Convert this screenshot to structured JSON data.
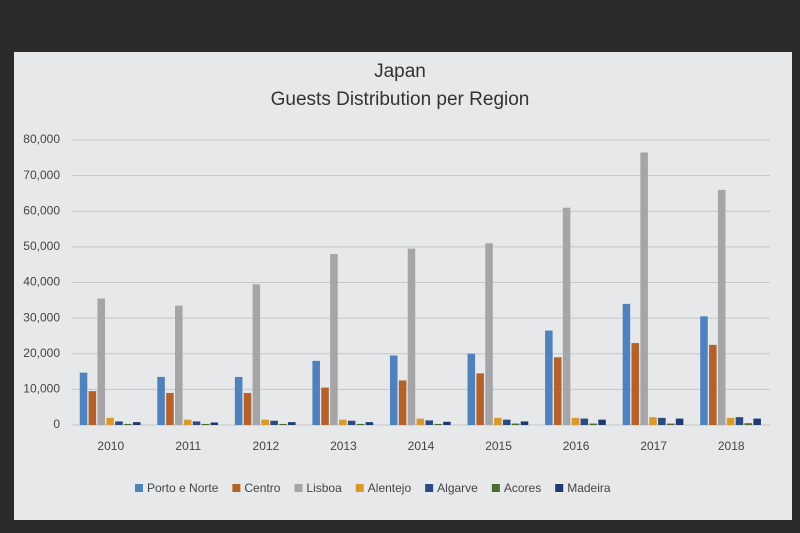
{
  "chart_data": {
    "type": "bar",
    "title": "Japan",
    "subtitle": "Guests Distribution per Region",
    "categories": [
      "2010",
      "2011",
      "2012",
      "2013",
      "2014",
      "2015",
      "2016",
      "2017",
      "2018"
    ],
    "series": [
      {
        "name": "Porto e Norte",
        "color": "#4f81bd",
        "values": [
          14700,
          13500,
          13500,
          18000,
          19500,
          20000,
          26500,
          34000,
          30500
        ]
      },
      {
        "name": "Centro",
        "color": "#b5612c",
        "values": [
          9500,
          9000,
          9000,
          10500,
          12500,
          14500,
          19000,
          23000,
          22500
        ]
      },
      {
        "name": "Lisboa",
        "color": "#a5a5a8",
        "values": [
          35500,
          33500,
          39500,
          48000,
          49500,
          51000,
          61000,
          76500,
          66000
        ]
      },
      {
        "name": "Alentejo",
        "color": "#d99a2b",
        "values": [
          2000,
          1500,
          1500,
          1500,
          1800,
          2000,
          2000,
          2200,
          2000
        ]
      },
      {
        "name": "Algarve",
        "color": "#2a4a80",
        "values": [
          1000,
          1000,
          1200,
          1200,
          1300,
          1500,
          1800,
          2000,
          2200
        ]
      },
      {
        "name": "Acores",
        "color": "#4e6b2e",
        "values": [
          300,
          300,
          300,
          300,
          300,
          400,
          400,
          400,
          500
        ]
      },
      {
        "name": "Madeira",
        "color": "#1f3a70",
        "values": [
          800,
          700,
          800,
          800,
          900,
          1000,
          1500,
          1800,
          1800
        ]
      }
    ],
    "ylim": [
      0,
      80000
    ],
    "yticks": [
      0,
      {
        "value": 10000,
        "label": "10,000"
      },
      {
        "value": 20000,
        "label": "20,000"
      },
      {
        "value": 30000,
        "label": "30,000"
      },
      {
        "value": 40000,
        "label": "40,000"
      },
      {
        "value": 50000,
        "label": "50,000"
      },
      {
        "value": 60000,
        "label": "60,000"
      },
      {
        "value": 70000,
        "label": "70,000"
      },
      {
        "value": 80000,
        "label": "80,000"
      }
    ],
    "grid": true
  }
}
